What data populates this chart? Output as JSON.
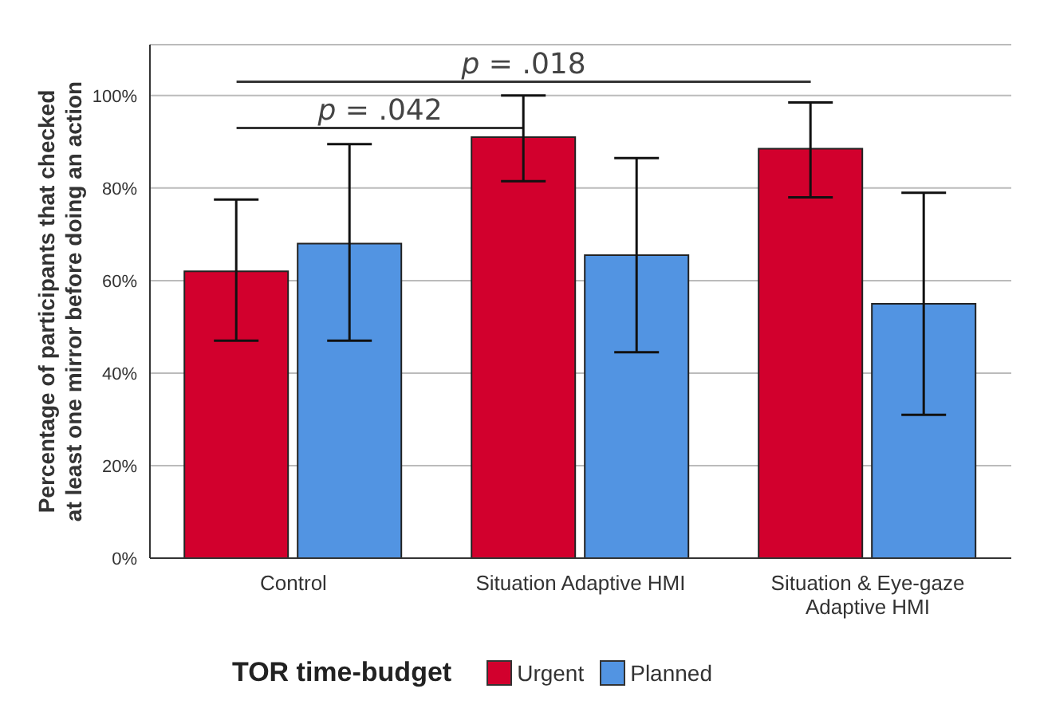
{
  "chart_data": {
    "type": "bar",
    "ylabel": "Percentage of participants that checked at least one mirror before doing an action",
    "legend_title": "TOR time-budget",
    "categories": [
      "Control",
      "Situation Adaptive HMI",
      "Situation & Eye-gaze Adaptive HMI"
    ],
    "series": [
      {
        "name": "Urgent",
        "color": "#d2002d",
        "values": [
          62,
          91,
          88.5
        ],
        "errors": [
          [
            47,
            77.5
          ],
          [
            81.5,
            100
          ],
          [
            78,
            98.5
          ]
        ]
      },
      {
        "name": "Planned",
        "color": "#5294e2",
        "values": [
          68,
          65.5,
          55
        ],
        "errors": [
          [
            47,
            89.5
          ],
          [
            44.5,
            86.5
          ],
          [
            31,
            79
          ]
        ]
      }
    ],
    "ylim": [
      0,
      111
    ],
    "yticks": [
      {
        "value": 0,
        "label": "0%"
      },
      {
        "value": 20,
        "label": "20%"
      },
      {
        "value": 40,
        "label": "40%"
      },
      {
        "value": 60,
        "label": "60%"
      },
      {
        "value": 80,
        "label": "80%"
      },
      {
        "value": 100,
        "label": "100%"
      }
    ],
    "grid": "y",
    "legend": "bottom",
    "annotations": [
      "p = .042",
      "p = .018"
    ]
  }
}
